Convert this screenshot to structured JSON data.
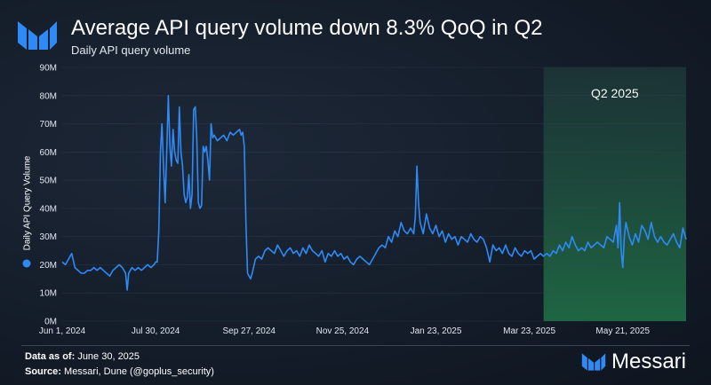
{
  "header": {
    "title": "Average API query volume down 8.3% QoQ in Q2",
    "subtitle": "Daily API query volume"
  },
  "footer": {
    "data_as_of_label": "Data as of:",
    "data_as_of_value": "June 30, 2025",
    "source_label": "Source:",
    "source_value": "Messari, Dune (@goplus_security)"
  },
  "brand": {
    "name": "Messari"
  },
  "colors": {
    "line": "#2f8af5",
    "highlight": "#1c4a3c",
    "grid": "#3a4656",
    "text": "#ffffff"
  },
  "chart_data": {
    "type": "line",
    "title": "Average API query volume down 8.3% QoQ in Q2",
    "subtitle": "Daily API query volume",
    "xlabel": "",
    "ylabel": "Daily API Query Volume",
    "ylim": [
      0,
      90
    ],
    "x_range": [
      "2024-06-01",
      "2025-06-30"
    ],
    "y_ticks": [
      {
        "value": 0,
        "label": "0M"
      },
      {
        "value": 10,
        "label": "10M"
      },
      {
        "value": 20,
        "label": "20M"
      },
      {
        "value": 30,
        "label": "30M"
      },
      {
        "value": 40,
        "label": "40M"
      },
      {
        "value": 50,
        "label": "50M"
      },
      {
        "value": 60,
        "label": "60M"
      },
      {
        "value": 70,
        "label": "70M"
      },
      {
        "value": 80,
        "label": "80M"
      },
      {
        "value": 90,
        "label": "90M"
      }
    ],
    "x_ticks": [
      {
        "day": 0,
        "label": "Jun 1, 2024"
      },
      {
        "day": 59,
        "label": "Jul 30, 2024"
      },
      {
        "day": 118,
        "label": "Sep 27, 2024"
      },
      {
        "day": 177,
        "label": "Nov 25, 2024"
      },
      {
        "day": 236,
        "label": "Jan 23, 2025"
      },
      {
        "day": 295,
        "label": "Mar 23, 2025"
      },
      {
        "day": 354,
        "label": "May 21, 2025"
      }
    ],
    "highlight": {
      "label": "Q2 2025",
      "start_day": 304,
      "end_day": 394
    },
    "legend": {
      "entries": [
        {
          "name": "Daily API Query Volume"
        }
      ],
      "placement": "left-vertical"
    },
    "series": [
      {
        "name": "Daily API Query Volume",
        "points": [
          [
            0,
            21
          ],
          [
            2,
            20
          ],
          [
            4,
            22
          ],
          [
            6,
            24
          ],
          [
            8,
            19
          ],
          [
            10,
            18
          ],
          [
            12,
            17
          ],
          [
            14,
            17
          ],
          [
            16,
            18
          ],
          [
            18,
            18
          ],
          [
            20,
            19
          ],
          [
            22,
            18
          ],
          [
            24,
            19
          ],
          [
            26,
            18
          ],
          [
            28,
            17
          ],
          [
            30,
            16
          ],
          [
            32,
            18
          ],
          [
            34,
            19
          ],
          [
            36,
            20
          ],
          [
            38,
            19
          ],
          [
            40,
            17
          ],
          [
            41,
            11
          ],
          [
            42,
            17
          ],
          [
            44,
            19
          ],
          [
            46,
            18
          ],
          [
            48,
            19
          ],
          [
            50,
            18
          ],
          [
            52,
            19
          ],
          [
            54,
            20
          ],
          [
            56,
            19
          ],
          [
            58,
            20
          ],
          [
            59,
            21
          ],
          [
            60,
            21
          ],
          [
            61,
            32
          ],
          [
            62,
            60
          ],
          [
            63,
            70
          ],
          [
            64,
            55
          ],
          [
            65,
            42
          ],
          [
            66,
            60
          ],
          [
            67,
            80
          ],
          [
            68,
            62
          ],
          [
            69,
            55
          ],
          [
            70,
            68
          ],
          [
            71,
            60
          ],
          [
            72,
            57
          ],
          [
            73,
            56
          ],
          [
            74,
            76
          ],
          [
            75,
            60
          ],
          [
            76,
            55
          ],
          [
            77,
            45
          ],
          [
            78,
            42
          ],
          [
            79,
            44
          ],
          [
            80,
            52
          ],
          [
            81,
            40
          ],
          [
            82,
            45
          ],
          [
            83,
            75
          ],
          [
            84,
            76
          ],
          [
            85,
            65
          ],
          [
            86,
            42
          ],
          [
            87,
            40
          ],
          [
            88,
            41
          ],
          [
            89,
            62
          ],
          [
            90,
            60
          ],
          [
            91,
            62
          ],
          [
            92,
            57
          ],
          [
            93,
            50
          ],
          [
            94,
            70
          ],
          [
            95,
            65
          ],
          [
            96,
            66
          ],
          [
            98,
            64
          ],
          [
            100,
            65
          ],
          [
            102,
            66
          ],
          [
            104,
            64
          ],
          [
            106,
            67
          ],
          [
            108,
            66
          ],
          [
            110,
            67
          ],
          [
            112,
            68
          ],
          [
            113,
            66
          ],
          [
            114,
            67
          ],
          [
            115,
            62
          ],
          [
            116,
            35
          ],
          [
            117,
            17
          ],
          [
            118,
            16
          ],
          [
            119,
            15
          ],
          [
            120,
            17
          ],
          [
            122,
            22
          ],
          [
            124,
            23
          ],
          [
            126,
            22
          ],
          [
            128,
            25
          ],
          [
            130,
            26
          ],
          [
            132,
            25
          ],
          [
            134,
            24
          ],
          [
            136,
            27
          ],
          [
            138,
            25
          ],
          [
            140,
            23
          ],
          [
            142,
            25
          ],
          [
            144,
            26
          ],
          [
            146,
            24
          ],
          [
            148,
            25
          ],
          [
            150,
            23
          ],
          [
            152,
            26
          ],
          [
            154,
            24
          ],
          [
            156,
            27
          ],
          [
            158,
            25
          ],
          [
            160,
            24
          ],
          [
            162,
            23
          ],
          [
            164,
            25
          ],
          [
            166,
            21
          ],
          [
            168,
            24
          ],
          [
            170,
            23
          ],
          [
            172,
            25
          ],
          [
            174,
            23
          ],
          [
            176,
            24
          ],
          [
            178,
            22
          ],
          [
            180,
            23
          ],
          [
            182,
            21
          ],
          [
            184,
            20
          ],
          [
            186,
            22
          ],
          [
            188,
            23
          ],
          [
            190,
            22
          ],
          [
            192,
            21
          ],
          [
            194,
            20
          ],
          [
            196,
            22
          ],
          [
            198,
            24
          ],
          [
            200,
            26
          ],
          [
            202,
            27
          ],
          [
            204,
            26
          ],
          [
            206,
            30
          ],
          [
            208,
            28
          ],
          [
            210,
            32
          ],
          [
            212,
            30
          ],
          [
            214,
            35
          ],
          [
            216,
            32
          ],
          [
            218,
            31
          ],
          [
            220,
            33
          ],
          [
            222,
            31
          ],
          [
            223,
            37
          ],
          [
            224,
            55
          ],
          [
            225,
            42
          ],
          [
            226,
            35
          ],
          [
            228,
            31
          ],
          [
            230,
            38
          ],
          [
            232,
            33
          ],
          [
            234,
            31
          ],
          [
            236,
            34
          ],
          [
            238,
            30
          ],
          [
            240,
            32
          ],
          [
            242,
            28
          ],
          [
            244,
            31
          ],
          [
            246,
            29
          ],
          [
            248,
            30
          ],
          [
            250,
            27
          ],
          [
            252,
            30
          ],
          [
            254,
            29
          ],
          [
            256,
            28
          ],
          [
            258,
            31
          ],
          [
            260,
            29
          ],
          [
            262,
            28
          ],
          [
            264,
            30
          ],
          [
            266,
            29
          ],
          [
            268,
            26
          ],
          [
            270,
            21
          ],
          [
            272,
            27
          ],
          [
            274,
            25
          ],
          [
            276,
            26
          ],
          [
            278,
            24
          ],
          [
            280,
            27
          ],
          [
            282,
            24
          ],
          [
            284,
            23
          ],
          [
            286,
            26
          ],
          [
            288,
            24
          ],
          [
            290,
            23
          ],
          [
            292,
            25
          ],
          [
            294,
            24
          ],
          [
            296,
            25
          ],
          [
            298,
            22
          ],
          [
            300,
            23
          ],
          [
            302,
            24
          ],
          [
            304,
            23
          ],
          [
            306,
            24
          ],
          [
            308,
            23
          ],
          [
            310,
            25
          ],
          [
            312,
            24
          ],
          [
            314,
            27
          ],
          [
            316,
            25
          ],
          [
            318,
            28
          ],
          [
            320,
            26
          ],
          [
            322,
            30
          ],
          [
            324,
            27
          ],
          [
            326,
            25
          ],
          [
            328,
            26
          ],
          [
            330,
            25
          ],
          [
            332,
            28
          ],
          [
            334,
            26
          ],
          [
            336,
            27
          ],
          [
            338,
            28
          ],
          [
            340,
            27
          ],
          [
            342,
            26
          ],
          [
            344,
            30
          ],
          [
            346,
            29
          ],
          [
            348,
            28
          ],
          [
            350,
            34
          ],
          [
            351,
            26
          ],
          [
            352,
            42
          ],
          [
            353,
            25
          ],
          [
            354,
            19
          ],
          [
            355,
            30
          ],
          [
            356,
            35
          ],
          [
            358,
            30
          ],
          [
            360,
            27
          ],
          [
            362,
            31
          ],
          [
            364,
            28
          ],
          [
            366,
            34
          ],
          [
            368,
            32
          ],
          [
            370,
            29
          ],
          [
            372,
            35
          ],
          [
            374,
            30
          ],
          [
            376,
            28
          ],
          [
            378,
            30
          ],
          [
            380,
            28
          ],
          [
            382,
            27
          ],
          [
            384,
            29
          ],
          [
            386,
            31
          ],
          [
            388,
            28
          ],
          [
            390,
            26
          ],
          [
            392,
            33
          ],
          [
            394,
            29
          ]
        ]
      }
    ]
  }
}
